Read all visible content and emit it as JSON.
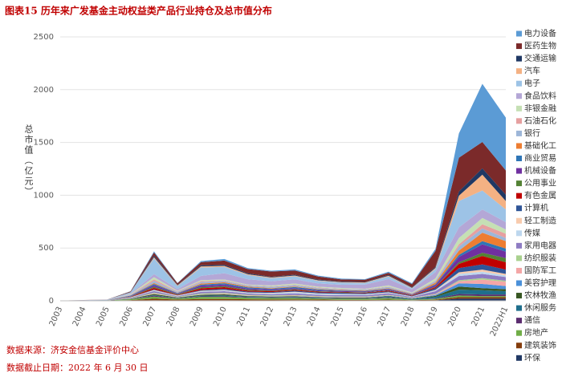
{
  "chart_data": {
    "type": "stacked_area",
    "title": "图表15 历年来广发基金主动权益类产品行业持仓及总市值分布",
    "y_label": "总市值（亿元）",
    "notes": [
      "数据来源：济安金信基金评价中心",
      "数据截止日期：2022 年 6 月 30 日"
    ],
    "categories": [
      "2003",
      "2004",
      "2005",
      "2006",
      "2007",
      "2008",
      "2009",
      "2010",
      "2011",
      "2012",
      "2013",
      "2014",
      "2015",
      "2016",
      "2017",
      "2018",
      "2019",
      "2020",
      "2021",
      "2022H1"
    ],
    "ylim": [
      0,
      2500
    ],
    "yticks": [
      0,
      500,
      1000,
      1500,
      2000,
      2500
    ],
    "grid": true,
    "legend": "right",
    "series": [
      {
        "name": "电力设备",
        "color": "#5b9bd5",
        "values": [
          0,
          0,
          0,
          2,
          10,
          3,
          10,
          15,
          10,
          8,
          10,
          8,
          8,
          6,
          10,
          8,
          20,
          230,
          550,
          500
        ]
      },
      {
        "name": "医药生物",
        "color": "#7b2a2a",
        "values": [
          0,
          1,
          1,
          5,
          30,
          15,
          30,
          40,
          40,
          50,
          40,
          30,
          20,
          20,
          20,
          30,
          150,
          320,
          250,
          230
        ]
      },
      {
        "name": "交通运输",
        "color": "#1f3864",
        "values": [
          0,
          0,
          0,
          3,
          15,
          5,
          10,
          10,
          8,
          6,
          8,
          6,
          5,
          5,
          8,
          5,
          10,
          40,
          60,
          60
        ]
      },
      {
        "name": "汽车",
        "color": "#f4b183",
        "values": [
          0,
          0,
          0,
          2,
          10,
          5,
          10,
          10,
          8,
          6,
          6,
          5,
          5,
          5,
          6,
          4,
          10,
          50,
          150,
          80
        ]
      },
      {
        "name": "电子",
        "color": "#9dc3e6",
        "values": [
          0,
          1,
          1,
          10,
          150,
          30,
          80,
          60,
          40,
          30,
          30,
          25,
          20,
          15,
          25,
          10,
          30,
          250,
          180,
          120
        ]
      },
      {
        "name": "食品饮料",
        "color": "#b4a7d6",
        "values": [
          0,
          0,
          1,
          5,
          30,
          15,
          40,
          60,
          50,
          40,
          40,
          30,
          30,
          40,
          60,
          30,
          60,
          100,
          80,
          70
        ]
      },
      {
        "name": "非银金融",
        "color": "#c5e0b4",
        "values": [
          0,
          0,
          0,
          5,
          20,
          5,
          10,
          8,
          5,
          8,
          10,
          8,
          8,
          5,
          10,
          5,
          20,
          60,
          60,
          40
        ]
      },
      {
        "name": "石油石化",
        "color": "#e6a0a0",
        "values": [
          0,
          0,
          0,
          3,
          15,
          5,
          8,
          5,
          4,
          4,
          5,
          4,
          3,
          3,
          4,
          2,
          5,
          20,
          40,
          40
        ]
      },
      {
        "name": "银行",
        "color": "#9db6d8",
        "values": [
          0,
          1,
          1,
          5,
          20,
          10,
          15,
          12,
          10,
          12,
          12,
          10,
          8,
          8,
          12,
          6,
          15,
          40,
          40,
          30
        ]
      },
      {
        "name": "基础化工",
        "color": "#ed7d31",
        "values": [
          0,
          0,
          0,
          2,
          8,
          3,
          10,
          10,
          8,
          6,
          6,
          5,
          5,
          5,
          6,
          4,
          15,
          40,
          80,
          70
        ]
      },
      {
        "name": "商业贸易",
        "color": "#2e75b6",
        "values": [
          0,
          0,
          1,
          4,
          12,
          5,
          10,
          12,
          10,
          8,
          10,
          8,
          6,
          6,
          5,
          3,
          8,
          20,
          30,
          30
        ]
      },
      {
        "name": "机械设备",
        "color": "#7030a0",
        "values": [
          0,
          0,
          0,
          4,
          15,
          5,
          15,
          15,
          12,
          10,
          10,
          8,
          7,
          6,
          8,
          5,
          15,
          50,
          80,
          60
        ]
      },
      {
        "name": "公用事业",
        "color": "#548235",
        "values": [
          0,
          0,
          1,
          3,
          10,
          6,
          10,
          10,
          8,
          6,
          6,
          5,
          4,
          4,
          4,
          3,
          5,
          15,
          30,
          40
        ]
      },
      {
        "name": "有色金属",
        "color": "#c00000",
        "values": [
          0,
          0,
          0,
          3,
          15,
          4,
          15,
          15,
          10,
          8,
          8,
          6,
          5,
          5,
          8,
          4,
          10,
          40,
          80,
          70
        ]
      },
      {
        "name": "计算机",
        "color": "#2f5597",
        "values": [
          0,
          0,
          0,
          2,
          5,
          3,
          8,
          10,
          8,
          8,
          10,
          10,
          10,
          8,
          8,
          5,
          15,
          40,
          50,
          40
        ]
      },
      {
        "name": "轻工制造",
        "color": "#f8cbad",
        "values": [
          0,
          0,
          0,
          2,
          5,
          3,
          5,
          5,
          4,
          4,
          4,
          3,
          3,
          3,
          4,
          2,
          5,
          15,
          20,
          15
        ]
      },
      {
        "name": "传媒",
        "color": "#bdd7ee",
        "values": [
          0,
          0,
          0,
          2,
          5,
          3,
          5,
          8,
          6,
          8,
          12,
          10,
          10,
          8,
          6,
          3,
          8,
          20,
          20,
          15
        ]
      },
      {
        "name": "家用电器",
        "color": "#8e7cc3",
        "values": [
          0,
          1,
          1,
          4,
          15,
          6,
          15,
          15,
          12,
          12,
          15,
          12,
          12,
          12,
          15,
          8,
          25,
          40,
          40,
          35
        ]
      },
      {
        "name": "纺织服装",
        "color": "#a9d18e",
        "values": [
          0,
          0,
          0,
          3,
          8,
          4,
          8,
          8,
          6,
          5,
          5,
          4,
          4,
          4,
          4,
          2,
          5,
          10,
          15,
          10
        ]
      },
      {
        "name": "国防军工",
        "color": "#f4a6a6",
        "values": [
          0,
          0,
          0,
          1,
          5,
          2,
          4,
          5,
          4,
          4,
          5,
          5,
          5,
          5,
          4,
          3,
          6,
          20,
          40,
          40
        ]
      },
      {
        "name": "美容护理",
        "color": "#4a90d9",
        "values": [
          0,
          0,
          0,
          0,
          1,
          1,
          2,
          2,
          2,
          2,
          2,
          2,
          2,
          2,
          4,
          3,
          8,
          30,
          40,
          30
        ]
      },
      {
        "name": "农林牧渔",
        "color": "#385723",
        "values": [
          0,
          0,
          0,
          2,
          10,
          4,
          8,
          10,
          6,
          5,
          5,
          4,
          4,
          4,
          6,
          3,
          10,
          30,
          20,
          20
        ]
      },
      {
        "name": "休闲服务",
        "color": "#1f6e8c",
        "values": [
          0,
          0,
          0,
          2,
          6,
          3,
          6,
          8,
          6,
          5,
          6,
          5,
          4,
          4,
          8,
          5,
          15,
          40,
          40,
          30
        ]
      },
      {
        "name": "通信",
        "color": "#5b2c6f",
        "values": [
          0,
          0,
          0,
          2,
          8,
          3,
          5,
          6,
          4,
          3,
          4,
          3,
          3,
          3,
          4,
          2,
          4,
          15,
          15,
          15
        ]
      },
      {
        "name": "房地产",
        "color": "#70ad47",
        "values": [
          1,
          2,
          2,
          8,
          20,
          10,
          20,
          20,
          15,
          15,
          15,
          10,
          10,
          10,
          15,
          5,
          8,
          15,
          10,
          10
        ]
      },
      {
        "name": "建筑装饰",
        "color": "#843c0c",
        "values": [
          0,
          1,
          1,
          5,
          15,
          8,
          12,
          12,
          10,
          8,
          8,
          8,
          5,
          5,
          5,
          3,
          5,
          15,
          15,
          15
        ]
      },
      {
        "name": "环保",
        "color": "#203864",
        "values": [
          1,
          1,
          1,
          2,
          5,
          3,
          5,
          5,
          4,
          4,
          5,
          4,
          4,
          4,
          6,
          3,
          5,
          20,
          20,
          20
        ]
      }
    ]
  }
}
